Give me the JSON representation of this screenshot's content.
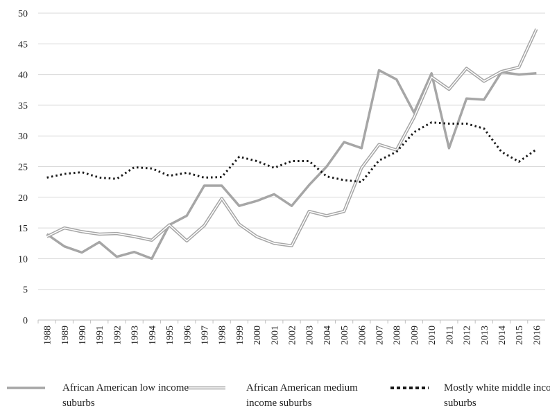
{
  "chart_data": {
    "type": "line",
    "categories": [
      "1988",
      "1989",
      "1990",
      "1991",
      "1992",
      "1993",
      "1994",
      "1995",
      "1996",
      "1997",
      "1998",
      "1999",
      "2000",
      "2001",
      "2002",
      "2003",
      "2004",
      "2005",
      "2006",
      "2007",
      "2008",
      "2009",
      "2010",
      "2011",
      "2012",
      "2013",
      "2014",
      "2015",
      "2016"
    ],
    "series": [
      {
        "name": "African American low income suburbs",
        "color": "#a6a6a6",
        "style": "solid",
        "values": [
          14,
          12,
          11,
          12.7,
          10.3,
          11.1,
          10,
          15.5,
          17,
          21.9,
          21.9,
          18.6,
          19.4,
          20.5,
          18.6,
          22,
          25,
          29,
          28,
          40.7,
          39.2,
          33.8,
          40.2,
          28,
          36.1,
          35.9,
          40.4,
          40,
          40.2
        ]
      },
      {
        "name": "African American medium income suburbs",
        "color": "#a6a6a6",
        "style": "double",
        "values": [
          13.6,
          15,
          14.4,
          14,
          14.1,
          13.6,
          13,
          15.5,
          12.9,
          15.4,
          19.8,
          15.6,
          13.6,
          12.5,
          12.1,
          17.7,
          17,
          17.7,
          24.8,
          28.6,
          27.7,
          33,
          39.6,
          37.6,
          41,
          38.9,
          40.5,
          41.2,
          47.4
        ]
      },
      {
        "name": "Mostly white middle income suburbs",
        "color": "#1a1a1a",
        "style": "dotted",
        "values": [
          23.2,
          23.8,
          24.1,
          23.2,
          23,
          24.9,
          24.7,
          23.5,
          24,
          23.2,
          23.3,
          26.6,
          25.9,
          24.8,
          25.9,
          25.9,
          23.4,
          22.8,
          22.5,
          26,
          27.4,
          30.6,
          32.2,
          32,
          32,
          31.2,
          27.4,
          25.8,
          27.8
        ]
      }
    ],
    "ylim": [
      0,
      50
    ],
    "yticks": [
      0,
      5,
      10,
      15,
      20,
      25,
      30,
      35,
      40,
      45,
      50
    ],
    "grid": true,
    "legend": "bottom"
  }
}
